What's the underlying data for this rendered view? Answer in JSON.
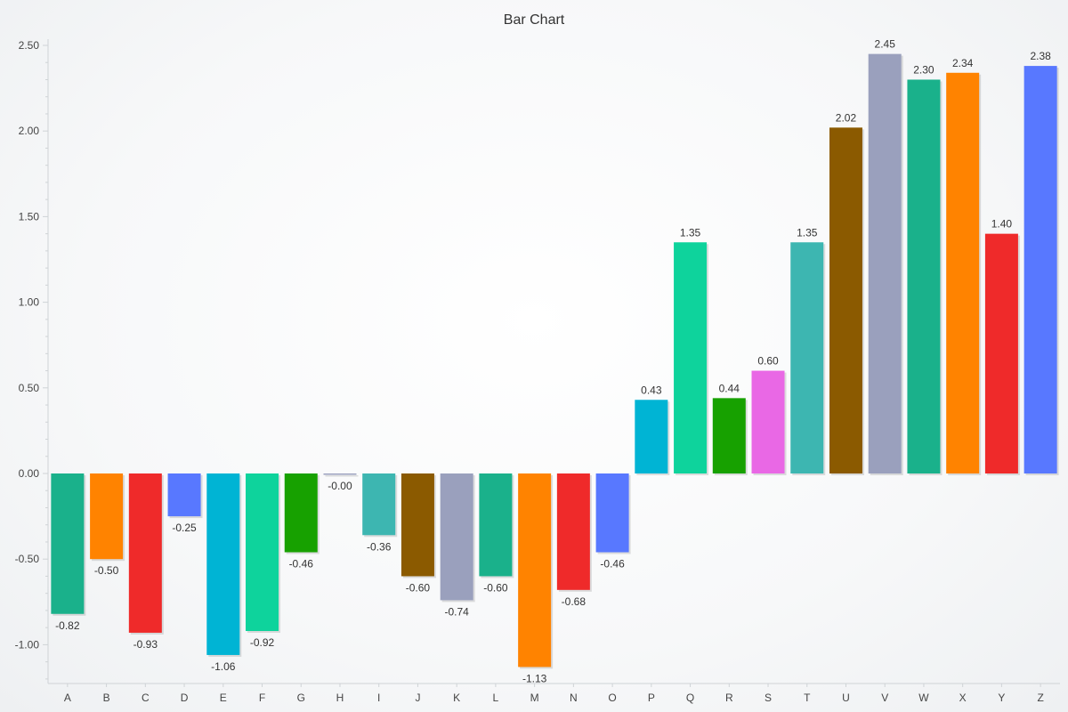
{
  "chart_data": {
    "type": "bar",
    "title": "Bar Chart",
    "xlabel": "",
    "ylabel": "",
    "ylim": [
      -1.2,
      2.55
    ],
    "yticks": [
      -1.0,
      -0.5,
      0.0,
      0.5,
      1.0,
      1.5,
      2.0,
      2.5
    ],
    "ytick_labels": [
      "-1.00",
      "-0.50",
      "0.00",
      "0.50",
      "1.00",
      "1.50",
      "2.00",
      "2.50"
    ],
    "grid": false,
    "legend": "none",
    "categories": [
      "A",
      "B",
      "C",
      "D",
      "E",
      "F",
      "G",
      "H",
      "I",
      "J",
      "K",
      "L",
      "M",
      "N",
      "O",
      "P",
      "Q",
      "R",
      "S",
      "T",
      "U",
      "V",
      "W",
      "X",
      "Y",
      "Z"
    ],
    "values": [
      -0.82,
      -0.5,
      -0.93,
      -0.25,
      -1.06,
      -0.92,
      -0.46,
      -0.004,
      -0.36,
      -0.6,
      -0.74,
      -0.6,
      -1.13,
      -0.68,
      -0.46,
      0.43,
      1.35,
      0.44,
      0.6,
      1.35,
      2.02,
      2.45,
      2.3,
      2.34,
      1.4,
      2.38
    ],
    "value_labels": [
      "-0.82",
      "-0.50",
      "-0.93",
      "-0.25",
      "-1.06",
      "-0.92",
      "-0.46",
      "-0.00",
      "-0.36",
      "-0.60",
      "-0.74",
      "-0.60",
      "-1.13",
      "-0.68",
      "-0.46",
      "0.43",
      "1.35",
      "0.44",
      "0.60",
      "1.35",
      "2.02",
      "2.45",
      "2.30",
      "2.34",
      "1.40",
      "2.38"
    ],
    "colors": [
      "#1ab18b",
      "#ff8300",
      "#ef2a2a",
      "#5878ff",
      "#00b4d4",
      "#0ed39c",
      "#17a100",
      "#9aa0bd",
      "#3db6b1",
      "#8b5a00",
      "#9aa0bd",
      "#1ab18b",
      "#ff8300",
      "#ef2a2a",
      "#5878ff",
      "#00b4d4",
      "#0ed39c",
      "#17a100",
      "#e968e5",
      "#3db6b1",
      "#8b5a00",
      "#9aa0bd",
      "#1ab18b",
      "#ff8300",
      "#ef2a2a",
      "#5878ff"
    ]
  }
}
